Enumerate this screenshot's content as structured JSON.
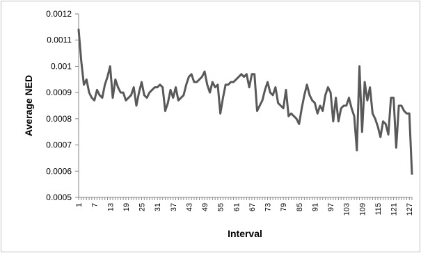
{
  "chart_data": {
    "type": "line",
    "title": "",
    "xlabel": "Interval",
    "ylabel": "Average NED",
    "ylim": [
      0.0005,
      0.0012
    ],
    "yticks": [
      "0.0005",
      "0.0006",
      "0.0007",
      "0.0008",
      "0.0009",
      "0.001",
      "0.0011",
      "0.0012"
    ],
    "xlim": [
      1,
      128
    ],
    "xticks": [
      "1",
      "7",
      "13",
      "19",
      "25",
      "31",
      "37",
      "43",
      "49",
      "55",
      "61",
      "67",
      "73",
      "79",
      "85",
      "91",
      "97",
      "103",
      "109",
      "115",
      "121",
      "127"
    ],
    "grid": false,
    "legend": "none",
    "line_color": "#595959",
    "series": [
      {
        "name": "",
        "x": [
          1,
          2,
          3,
          4,
          5,
          6,
          7,
          8,
          9,
          10,
          11,
          12,
          13,
          14,
          15,
          16,
          17,
          18,
          19,
          20,
          21,
          22,
          23,
          24,
          25,
          26,
          27,
          28,
          29,
          30,
          31,
          32,
          33,
          34,
          35,
          36,
          37,
          38,
          39,
          40,
          41,
          42,
          43,
          44,
          45,
          46,
          47,
          48,
          49,
          50,
          51,
          52,
          53,
          54,
          55,
          56,
          57,
          58,
          59,
          60,
          61,
          62,
          63,
          64,
          65,
          66,
          67,
          68,
          69,
          70,
          71,
          72,
          73,
          74,
          75,
          76,
          77,
          78,
          79,
          80,
          81,
          82,
          83,
          84,
          85,
          86,
          87,
          88,
          89,
          90,
          91,
          92,
          93,
          94,
          95,
          96,
          97,
          98,
          99,
          100,
          101,
          102,
          103,
          104,
          105,
          106,
          107,
          108,
          109,
          110,
          111,
          112,
          113,
          114,
          115,
          116,
          117,
          118,
          119,
          120,
          121,
          122,
          123,
          124,
          125,
          126,
          127,
          128
        ],
        "values": [
          0.00114,
          0.00102,
          0.00093,
          0.00095,
          0.0009,
          0.00088,
          0.00087,
          0.00091,
          0.00089,
          0.00088,
          0.00093,
          0.00096,
          0.001,
          0.00088,
          0.00095,
          0.00092,
          0.0009,
          0.0009,
          0.00087,
          0.00088,
          0.00089,
          0.00092,
          0.00085,
          0.0009,
          0.00094,
          0.00089,
          0.00088,
          0.0009,
          0.00091,
          0.00092,
          0.00092,
          0.00093,
          0.00092,
          0.00083,
          0.00086,
          0.00091,
          0.00088,
          0.00092,
          0.00087,
          0.00088,
          0.00089,
          0.00093,
          0.00096,
          0.00097,
          0.00094,
          0.00094,
          0.00095,
          0.00096,
          0.00098,
          0.00093,
          0.0009,
          0.00094,
          0.00092,
          0.00093,
          0.00082,
          0.00088,
          0.00093,
          0.00093,
          0.00094,
          0.00094,
          0.00095,
          0.00096,
          0.00097,
          0.00096,
          0.00097,
          0.00092,
          0.00097,
          0.00097,
          0.00083,
          0.00085,
          0.00087,
          0.00091,
          0.00094,
          0.0009,
          0.00089,
          0.00092,
          0.00086,
          0.00085,
          0.00084,
          0.00091,
          0.00081,
          0.00082,
          0.00081,
          0.0008,
          0.00078,
          0.00084,
          0.00089,
          0.00093,
          0.00089,
          0.00087,
          0.00086,
          0.00082,
          0.00085,
          0.00083,
          0.00089,
          0.00092,
          0.0009,
          0.00079,
          0.00088,
          0.00079,
          0.00084,
          0.00085,
          0.00085,
          0.00088,
          0.00084,
          0.00081,
          0.00068,
          0.001,
          0.00075,
          0.00094,
          0.00087,
          0.00092,
          0.00082,
          0.0008,
          0.00077,
          0.00073,
          0.00079,
          0.00078,
          0.00074,
          0.00088,
          0.00088,
          0.00069,
          0.00085,
          0.00085,
          0.00083,
          0.00082,
          0.00082,
          0.00059
        ]
      }
    ]
  }
}
